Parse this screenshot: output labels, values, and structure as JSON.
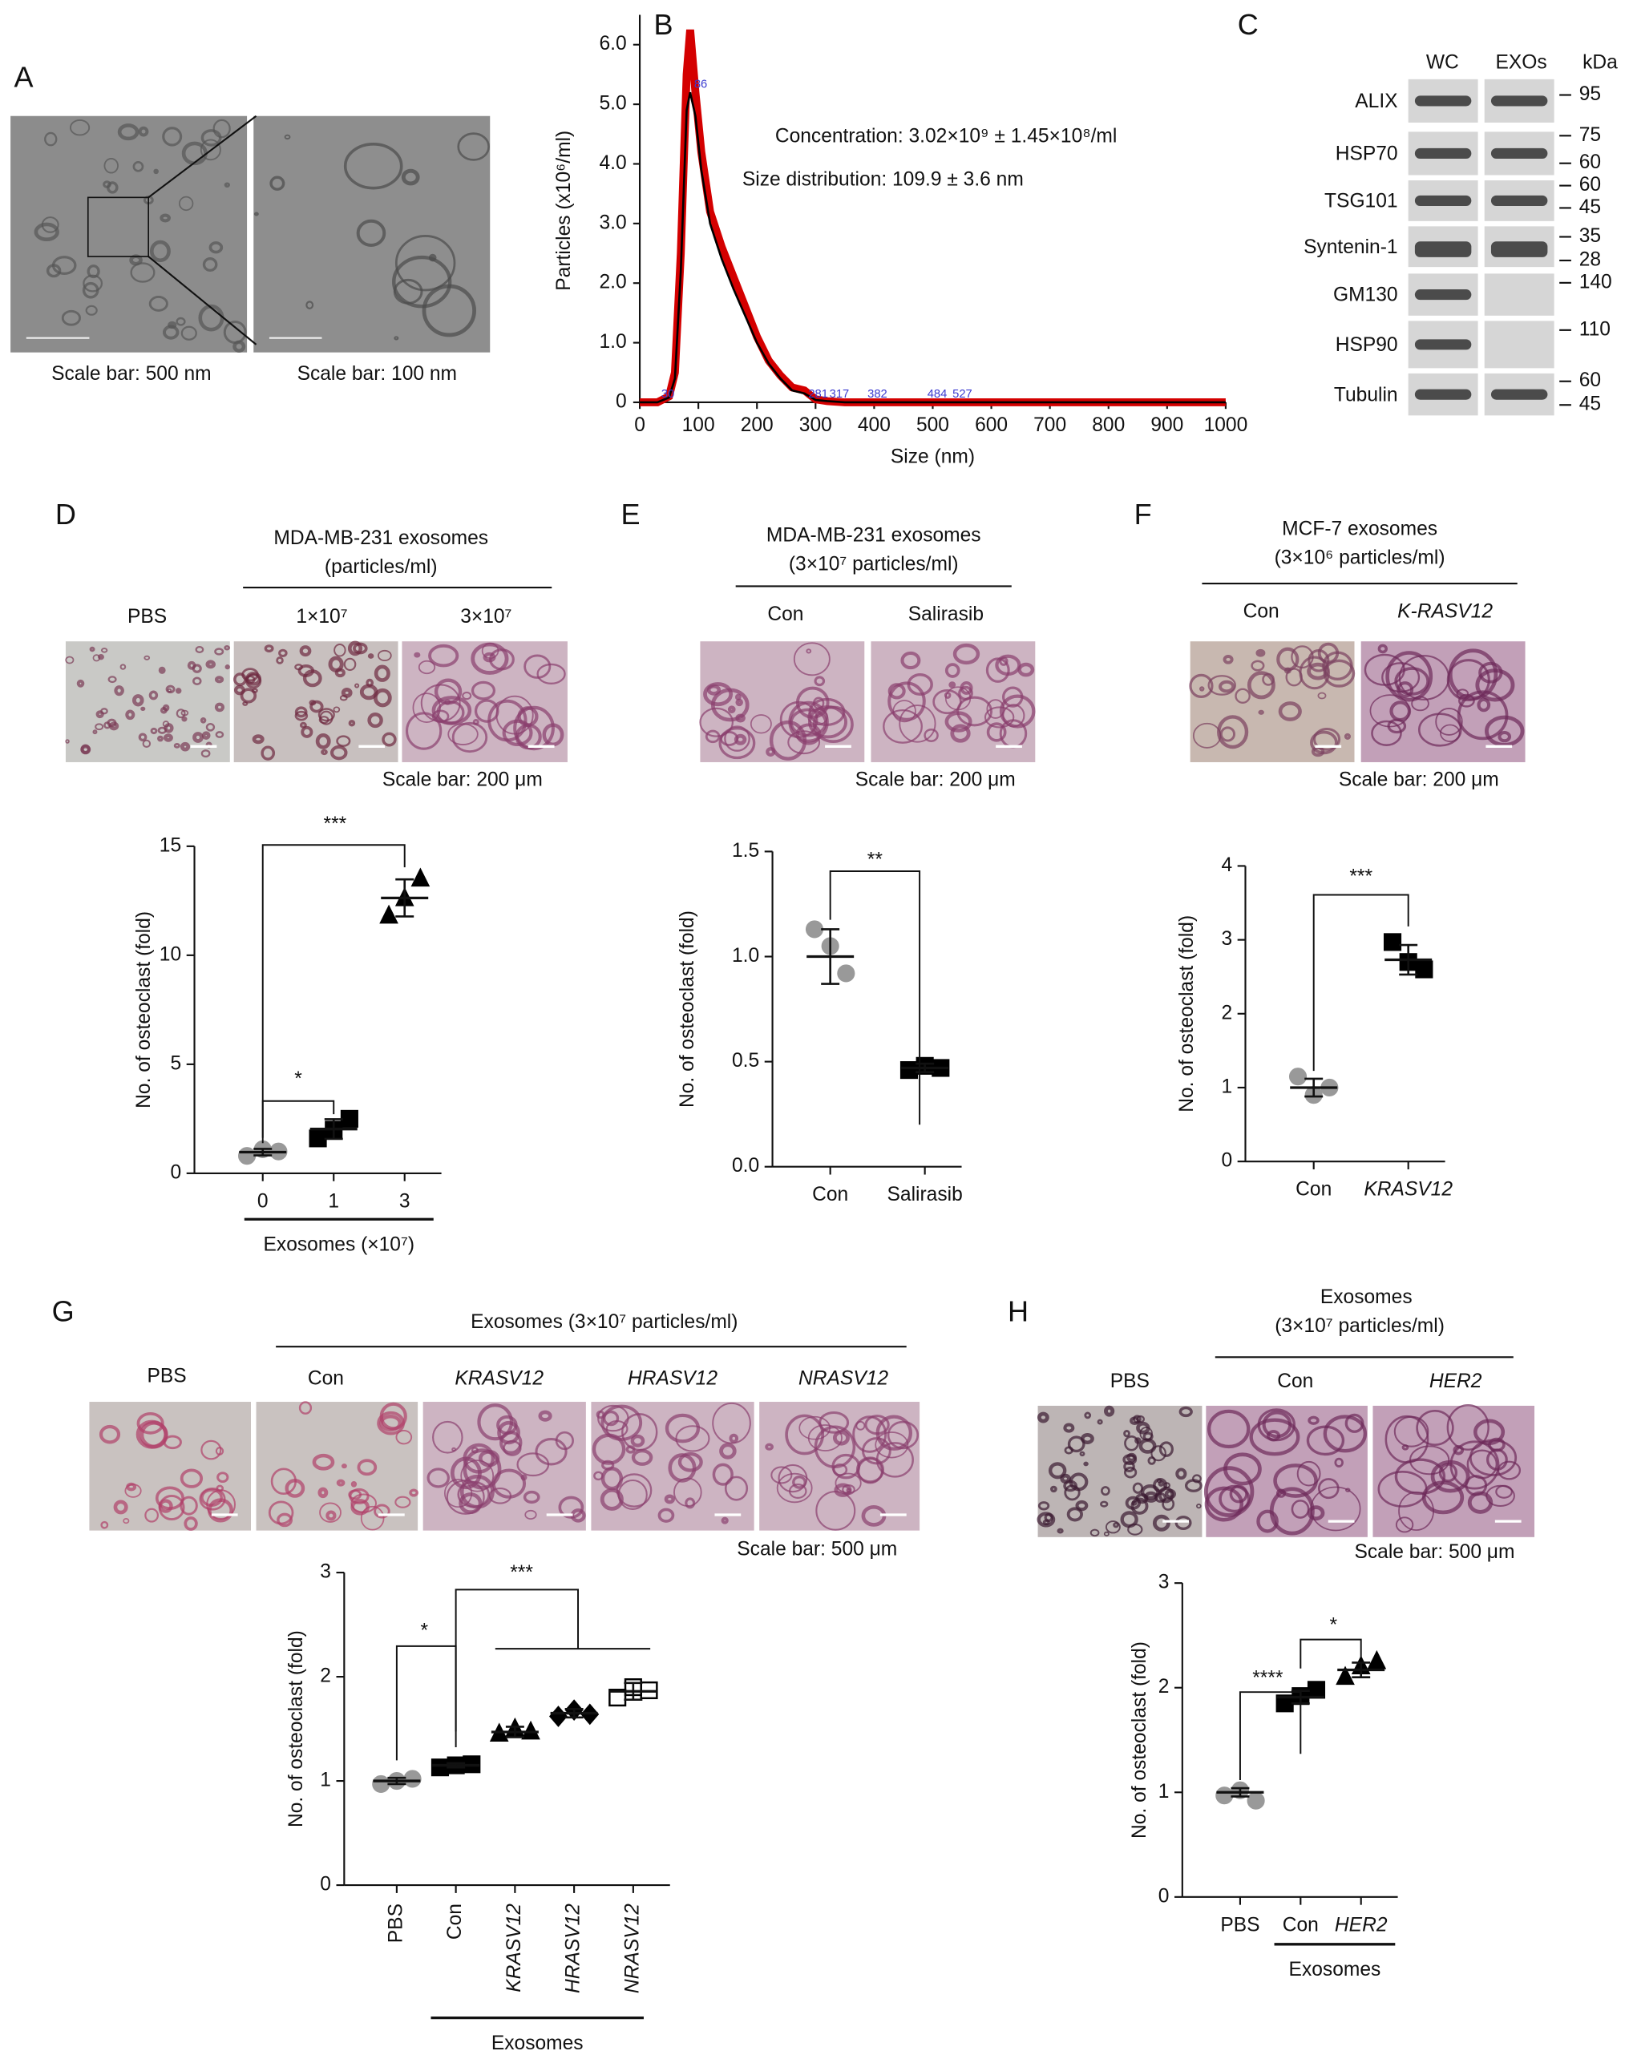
{
  "panels": {
    "A": {
      "label": "A",
      "captions": [
        "Scale bar: 500 nm",
        "Scale bar: 100 nm"
      ]
    },
    "B": {
      "label": "B"
    },
    "C": {
      "label": "C"
    },
    "D": {
      "label": "D",
      "header": [
        "MDA-MB-231 exosomes",
        "(particles/ml)"
      ],
      "conditions": [
        "PBS",
        "1×10⁷",
        "3×10⁷"
      ],
      "scale_bar": "Scale bar: 200 μm"
    },
    "E": {
      "label": "E",
      "header": [
        "MDA-MB-231 exosomes",
        "(3×10⁷ particles/ml)"
      ],
      "conditions": [
        "Con",
        "Salirasib"
      ],
      "scale_bar": "Scale bar: 200 μm"
    },
    "F": {
      "label": "F",
      "header": [
        "MCF-7 exosomes",
        "(3×10⁶ particles/ml)"
      ],
      "conditions": [
        "Con",
        "K-RASV12"
      ],
      "scale_bar": "Scale bar: 200 μm"
    },
    "G": {
      "label": "G",
      "header": [
        "Exosomes (3×10⁷ particles/ml)"
      ],
      "conditions": [
        "PBS",
        "Con",
        "KRASV12",
        "HRASV12",
        "NRASV12"
      ],
      "scale_bar": "Scale bar: 500 μm"
    },
    "H": {
      "label": "H",
      "header": [
        "Exosomes",
        "(3×10⁷ particles/ml)"
      ],
      "conditions": [
        "PBS",
        "Con",
        "HER2"
      ],
      "scale_bar": "Scale bar: 500 μm"
    }
  },
  "blot": {
    "columns": [
      "WC",
      "EXOs"
    ],
    "unit": "kDa",
    "rows": [
      "ALIX",
      "HSP70",
      "TSG101",
      "Syntenin-1",
      "GM130",
      "HSP90",
      "Tubulin"
    ],
    "markers": [
      95,
      75,
      60,
      60,
      45,
      35,
      28,
      140,
      110,
      60,
      45
    ]
  },
  "chart_data": [
    {
      "type": "line",
      "xlabel": "Size (nm)",
      "ylabel": "Particles (x10⁶/ml)",
      "annotations": [
        "Concentration: 3.02×10⁹ ± 1.45×10⁸/ml",
        "Size distribution: 109.9 ± 3.6 nm"
      ],
      "peak_labels": [
        30,
        86,
        281,
        317,
        382,
        484,
        527
      ],
      "x": [
        0,
        30,
        50,
        60,
        70,
        80,
        86,
        95,
        105,
        120,
        140,
        160,
        180,
        200,
        220,
        240,
        260,
        281,
        300,
        320,
        350,
        400,
        1000
      ],
      "series": [
        {
          "color": "#d40000",
          "values": [
            0,
            0,
            0.1,
            0.5,
            2.5,
            5.5,
            6.25,
            5.2,
            4.2,
            3.2,
            2.6,
            2.1,
            1.6,
            1.1,
            0.7,
            0.45,
            0.25,
            0.2,
            0.05,
            0.02,
            0,
            0,
            0
          ]
        },
        {
          "color": "#000000",
          "values": [
            0,
            0,
            0.08,
            0.4,
            2.2,
            4.9,
            5.2,
            4.8,
            3.9,
            3.0,
            2.4,
            1.9,
            1.45,
            1.0,
            0.65,
            0.4,
            0.2,
            0.15,
            0.04,
            0.02,
            0,
            0,
            0
          ]
        }
      ],
      "xlim": [
        0,
        1000
      ],
      "xticks": [
        0,
        100,
        200,
        300,
        400,
        500,
        600,
        700,
        800,
        900,
        1000
      ],
      "ylim": [
        0,
        6.5
      ],
      "yticks": [
        {
          "value": 6,
          "label": "6.0"
        },
        {
          "value": 5,
          "label": "5.0"
        },
        {
          "value": 4,
          "label": "4.0"
        },
        {
          "value": 3,
          "label": "3.0"
        },
        {
          "value": 2,
          "label": "2.0"
        },
        {
          "value": 1,
          "label": "1.0"
        },
        0
      ]
    },
    {
      "type": "dotplot",
      "ylabel": "No. of osteoclast (fold)",
      "xlabel": "Exosomes (×10⁷)",
      "categories": [
        "0",
        "1",
        "3"
      ],
      "points": [
        [
          0.8,
          1.1,
          1.0
        ],
        [
          1.6,
          2.0,
          2.5
        ],
        [
          11.8,
          12.6,
          13.5
        ]
      ],
      "means": [
        0.97,
        2.03,
        12.63
      ],
      "sd": [
        0.15,
        0.45,
        0.85
      ],
      "colors": [
        "#999999",
        "#000000",
        "#000000"
      ],
      "markers": [
        "circle",
        "square",
        "triangle"
      ],
      "ylim": [
        0,
        15
      ],
      "yticks": [
        0,
        5,
        10,
        15
      ],
      "annotations": [
        "***",
        "*"
      ]
    },
    {
      "type": "dotplot",
      "ylabel": "No. of osteoclast (fold)",
      "categories": [
        "Con",
        "Salirasib"
      ],
      "points": [
        [
          1.13,
          1.05,
          0.92
        ],
        [
          0.46,
          0.48,
          0.47
        ]
      ],
      "means": [
        1.0,
        0.47
      ],
      "sd": [
        0.13,
        0.02
      ],
      "colors": [
        "#999999",
        "#000000"
      ],
      "markers": [
        "circle",
        "square"
      ],
      "ylim": [
        0,
        1.5
      ],
      "yticks": [
        {
          "value": 0,
          "label": "0.0"
        },
        {
          "value": 0.5,
          "label": "0.5"
        },
        {
          "value": 1,
          "label": "1.0"
        },
        {
          "value": 1.5,
          "label": "1.5"
        }
      ],
      "annotations": [
        "**"
      ]
    },
    {
      "type": "dotplot",
      "ylabel": "No. of osteoclast (fold)",
      "categories": [
        "Con",
        "KRASV12"
      ],
      "points": [
        [
          1.15,
          0.9,
          1.0
        ],
        [
          2.97,
          2.7,
          2.6
        ]
      ],
      "means": [
        1.0,
        2.73
      ],
      "sd": [
        0.12,
        0.2
      ],
      "colors": [
        "#999999",
        "#000000"
      ],
      "markers": [
        "circle",
        "square"
      ],
      "ylim": [
        0,
        4
      ],
      "yticks": [
        0,
        1,
        2,
        3,
        4
      ],
      "annotations": [
        "***"
      ]
    },
    {
      "type": "dotplot",
      "ylabel": "No. of osteoclast (fold)",
      "xlabel": "Exosomes",
      "categories": [
        "PBS",
        "Con",
        "KRASV12",
        "HRASV12",
        "NRASV12"
      ],
      "points": [
        [
          0.97,
          1.0,
          1.02
        ],
        [
          1.13,
          1.15,
          1.16
        ],
        [
          1.45,
          1.5,
          1.47
        ],
        [
          1.62,
          1.68,
          1.64
        ],
        [
          1.8,
          1.9,
          1.87
        ]
      ],
      "means": [
        1.0,
        1.15,
        1.47,
        1.65,
        1.86
      ],
      "sd": [
        0.03,
        0.02,
        0.05,
        0.04,
        0.08
      ],
      "colors": [
        "#999999",
        "#000000",
        "#000000",
        "#000000",
        "#000000"
      ],
      "markers": [
        "circle",
        "square",
        "triangle",
        "diamond",
        "open-square"
      ],
      "ylim": [
        0,
        3
      ],
      "yticks": [
        0,
        1,
        2,
        3
      ],
      "annotations": [
        "*",
        "***"
      ]
    },
    {
      "type": "dotplot",
      "ylabel": "No. of osteoclast (fold)",
      "xlabel": "Exosomes",
      "categories": [
        "PBS",
        "Con",
        "HER2"
      ],
      "points": [
        [
          0.97,
          1.02,
          0.92
        ],
        [
          1.85,
          1.92,
          1.98
        ],
        [
          2.1,
          2.2,
          2.25
        ]
      ],
      "means": [
        1.0,
        1.91,
        2.17
      ],
      "sd": [
        0.04,
        0.06,
        0.07
      ],
      "colors": [
        "#999999",
        "#000000",
        "#000000"
      ],
      "markers": [
        "circle",
        "square",
        "triangle"
      ],
      "ylim": [
        0,
        3
      ],
      "yticks": [
        0,
        1,
        2,
        3
      ],
      "annotations": [
        "****",
        "*"
      ]
    }
  ]
}
